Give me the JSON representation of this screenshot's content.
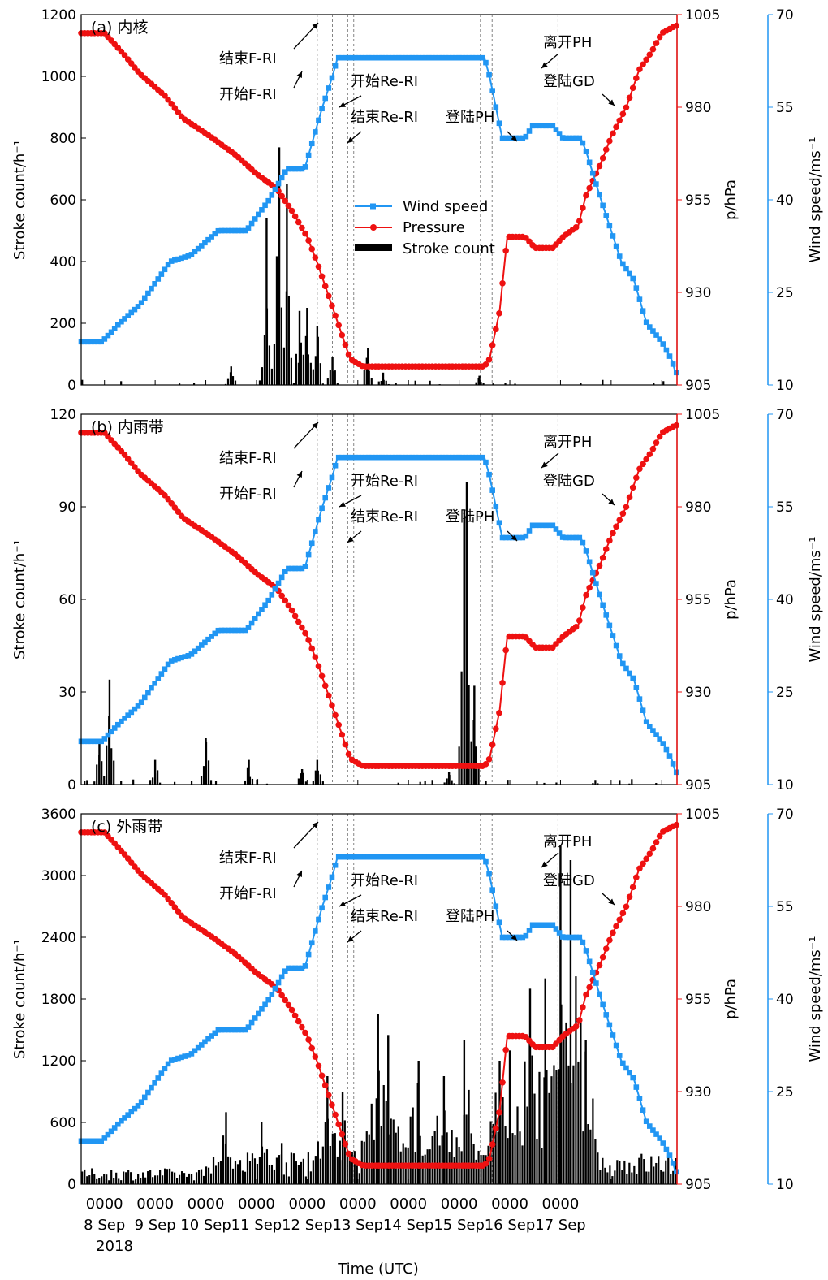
{
  "figure": {
    "xlabel": "Time (UTC)",
    "x_ticks": [
      {
        "t": "0000",
        "d": "8 Sep"
      },
      {
        "t": "0000",
        "d": "9 Sep"
      },
      {
        "t": "0000",
        "d": "10 Sep"
      },
      {
        "t": "0000",
        "d": "11 Sep"
      },
      {
        "t": "0000",
        "d": "12 Sep"
      },
      {
        "t": "0000",
        "d": "13 Sep"
      },
      {
        "t": "0000",
        "d": "14 Sep"
      },
      {
        "t": "0000",
        "d": "15 Sep"
      },
      {
        "t": "0000",
        "d": "16 Sep"
      },
      {
        "t": "0000",
        "d": "17 Sep"
      }
    ],
    "year_label": "2018",
    "legend": [
      "Wind speed",
      "Pressure",
      "Stroke count"
    ],
    "colors": {
      "wind": "#2196F3",
      "pressure": "#EE1111",
      "stroke": "#000000"
    },
    "event_labels": [
      "结束F-RI",
      "开始F-RI",
      "开始Re-RI",
      "结束Re-RI",
      "登陆PH",
      "离开PH",
      "登陆GD"
    ]
  },
  "chart_data": [
    {
      "type": "bar",
      "panel_label": "(a)",
      "panel_title": "内核",
      "x_range": [
        "2018-09-07T13:00",
        "2018-09-17T06:00"
      ],
      "ylabel_left": "Stroke count/h-1",
      "ylim_left": [
        0,
        1200
      ],
      "yticks_left": [
        0,
        200,
        400,
        600,
        800,
        1000,
        1200
      ],
      "ylabel_right_pressure": "p/hPa",
      "ylim_pressure": [
        905,
        1005
      ],
      "yticks_pressure": [
        905,
        930,
        955,
        980,
        1005
      ],
      "ylabel_right_wind": "Wind speed/ms-1",
      "ylim_wind": [
        10,
        70
      ],
      "yticks_wind": [
        10,
        25,
        40,
        55,
        70
      ],
      "stroke_peaks": [
        [
          10.5,
          60
        ],
        [
          11.2,
          540
        ],
        [
          11.45,
          770
        ],
        [
          11.6,
          650
        ],
        [
          11.85,
          240
        ],
        [
          12.0,
          250
        ],
        [
          12.2,
          190
        ],
        [
          12.5,
          90
        ],
        [
          13.2,
          120
        ],
        [
          13.5,
          40
        ],
        [
          15.4,
          30
        ]
      ]
    },
    {
      "type": "bar",
      "panel_label": "(b)",
      "panel_title": "内雨带",
      "x_range": [
        "2018-09-07T13:00",
        "2018-09-17T06:00"
      ],
      "ylabel_left": "Stroke count/h-1",
      "ylim_left": [
        0,
        120
      ],
      "yticks_left": [
        0,
        30,
        60,
        90,
        120
      ],
      "ylabel_right_pressure": "p/hPa",
      "ylim_pressure": [
        905,
        1005
      ],
      "yticks_pressure": [
        905,
        930,
        955,
        980,
        1005
      ],
      "ylabel_right_wind": "Wind speed/ms-1",
      "ylim_wind": [
        10,
        70
      ],
      "yticks_wind": [
        10,
        25,
        40,
        55,
        70
      ],
      "stroke_peaks": [
        [
          7.9,
          14
        ],
        [
          8.1,
          34
        ],
        [
          9.0,
          8
        ],
        [
          10.0,
          15
        ],
        [
          10.85,
          8
        ],
        [
          11.9,
          5
        ],
        [
          12.2,
          8
        ],
        [
          14.8,
          4
        ],
        [
          15.1,
          89
        ],
        [
          15.15,
          98
        ],
        [
          15.3,
          32
        ]
      ]
    },
    {
      "type": "bar",
      "panel_label": "(c)",
      "panel_title": "外雨带",
      "x_range": [
        "2018-09-07T13:00",
        "2018-09-17T06:00"
      ],
      "ylabel_left": "Stroke count/h-1",
      "ylim_left": [
        0,
        3600
      ],
      "yticks_left": [
        0,
        600,
        1200,
        1800,
        2400,
        3000,
        3600
      ],
      "ylabel_right_pressure": "p/hPa",
      "ylim_pressure": [
        905,
        1005
      ],
      "yticks_pressure": [
        905,
        930,
        955,
        980,
        1005
      ],
      "ylabel_right_wind": "Wind speed/ms-1",
      "ylim_wind": [
        10,
        70
      ],
      "yticks_wind": [
        10,
        25,
        40,
        55,
        70
      ],
      "stroke_peaks": [
        [
          10.4,
          700
        ],
        [
          11.1,
          600
        ],
        [
          11.5,
          400
        ],
        [
          12.4,
          1050
        ],
        [
          12.7,
          900
        ],
        [
          13.4,
          1650
        ],
        [
          13.6,
          1450
        ],
        [
          14.2,
          1200
        ],
        [
          14.7,
          1050
        ],
        [
          15.1,
          1400
        ],
        [
          15.8,
          1200
        ],
        [
          16.0,
          1300
        ],
        [
          16.4,
          1900
        ],
        [
          16.7,
          2000
        ],
        [
          17.0,
          3300
        ],
        [
          17.2,
          3150
        ],
        [
          17.5,
          1400
        ]
      ]
    }
  ],
  "series_shared": {
    "wind_speed": {
      "name": "Wind speed",
      "points": [
        [
          7.54,
          17
        ],
        [
          7.95,
          17
        ],
        [
          8.3,
          20
        ],
        [
          8.7,
          23
        ],
        [
          9.3,
          30
        ],
        [
          9.7,
          31
        ],
        [
          10.25,
          35
        ],
        [
          10.8,
          35
        ],
        [
          11.25,
          40
        ],
        [
          11.6,
          45
        ],
        [
          11.95,
          45
        ],
        [
          12.3,
          55
        ],
        [
          12.5,
          60
        ],
        [
          12.6,
          63
        ],
        [
          15.5,
          63
        ],
        [
          15.6,
          60
        ],
        [
          15.85,
          50
        ],
        [
          16.3,
          50
        ],
        [
          16.45,
          52
        ],
        [
          16.85,
          52
        ],
        [
          17.05,
          50
        ],
        [
          17.4,
          50
        ],
        [
          17.5,
          48
        ],
        [
          17.8,
          40
        ],
        [
          18.0,
          35
        ],
        [
          18.2,
          30
        ],
        [
          18.45,
          27
        ],
        [
          18.7,
          20
        ],
        [
          19.0,
          17
        ],
        [
          19.2,
          14
        ],
        [
          19.27,
          12
        ]
      ]
    },
    "pressure": {
      "name": "Pressure",
      "points": [
        [
          7.54,
          1000
        ],
        [
          8.0,
          1000
        ],
        [
          8.4,
          994
        ],
        [
          8.7,
          989
        ],
        [
          9.2,
          983
        ],
        [
          9.55,
          977
        ],
        [
          10.1,
          972
        ],
        [
          10.6,
          967
        ],
        [
          11.0,
          962
        ],
        [
          11.4,
          958
        ],
        [
          11.7,
          952
        ],
        [
          12.0,
          945
        ],
        [
          12.2,
          938
        ],
        [
          12.4,
          930
        ],
        [
          12.6,
          922
        ],
        [
          12.85,
          912
        ],
        [
          13.1,
          910
        ],
        [
          15.5,
          910
        ],
        [
          15.6,
          912
        ],
        [
          15.8,
          925
        ],
        [
          15.95,
          945
        ],
        [
          16.3,
          945
        ],
        [
          16.5,
          942
        ],
        [
          16.85,
          942
        ],
        [
          17.05,
          945
        ],
        [
          17.35,
          948
        ],
        [
          17.5,
          956
        ],
        [
          17.8,
          965
        ],
        [
          18.0,
          972
        ],
        [
          18.3,
          980
        ],
        [
          18.55,
          990
        ],
        [
          18.8,
          995
        ],
        [
          19.0,
          1000
        ],
        [
          19.27,
          1002
        ]
      ]
    },
    "event_times": [
      12.2,
      12.5,
      12.8,
      12.92,
      15.42,
      15.65,
      16.95
    ]
  }
}
